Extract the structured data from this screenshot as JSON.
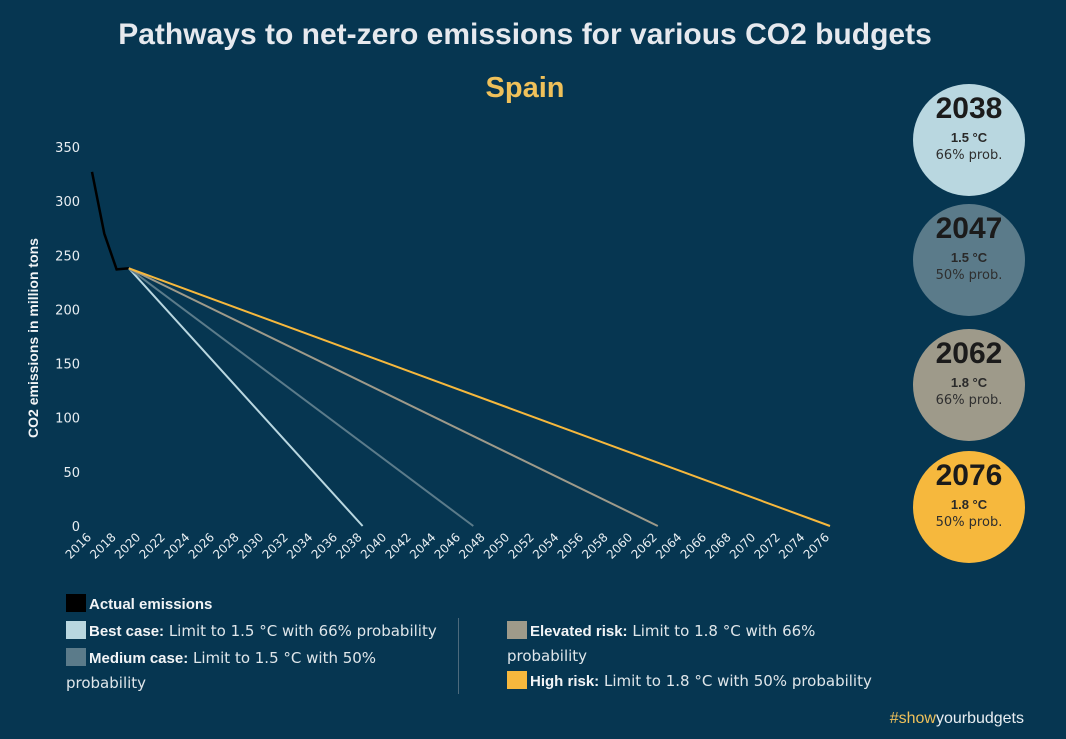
{
  "title": "Pathways to net-zero emissions for various CO2 budgets",
  "subtitle": "Spain",
  "chart_data": {
    "type": "line",
    "ylabel": "CO2 emissions in million tons",
    "ylim": [
      0,
      350
    ],
    "yticks": [
      0,
      50,
      100,
      150,
      200,
      250,
      300,
      350
    ],
    "xlim": [
      2016,
      2076
    ],
    "xticks": [
      2016,
      2018,
      2020,
      2022,
      2024,
      2026,
      2028,
      2030,
      2032,
      2034,
      2036,
      2038,
      2040,
      2042,
      2044,
      2046,
      2048,
      2050,
      2052,
      2054,
      2056,
      2058,
      2060,
      2062,
      2064,
      2066,
      2068,
      2070,
      2072,
      2074,
      2076
    ],
    "series": [
      {
        "name": "Actual emissions",
        "color": "#000000",
        "points": [
          [
            2016,
            327
          ],
          [
            2017,
            270
          ],
          [
            2018,
            237
          ],
          [
            2019,
            238
          ]
        ]
      },
      {
        "name": "Best case",
        "color": "#b9d7e0",
        "points": [
          [
            2019,
            238
          ],
          [
            2038,
            0
          ]
        ]
      },
      {
        "name": "Medium case",
        "color": "#5b7b8a",
        "points": [
          [
            2019,
            238
          ],
          [
            2047,
            0
          ]
        ]
      },
      {
        "name": "Elevated risk",
        "color": "#9e9a8a",
        "points": [
          [
            2019,
            238
          ],
          [
            2062,
            0
          ]
        ]
      },
      {
        "name": "High risk",
        "color": "#f6b83d",
        "points": [
          [
            2019,
            238
          ],
          [
            2076,
            0
          ]
        ]
      }
    ]
  },
  "circles": [
    {
      "year": "2038",
      "limit": "1.5 °C",
      "prob": "66% prob.",
      "color": "#b9d7e0"
    },
    {
      "year": "2047",
      "limit": "1.5 °C",
      "prob": "50% prob.",
      "color": "#5b7b8a"
    },
    {
      "year": "2062",
      "limit": "1.8 °C",
      "prob": "66% prob.",
      "color": "#9e9a8a"
    },
    {
      "year": "2076",
      "limit": "1.8 °C",
      "prob": "50% prob.",
      "color": "#f6b83d"
    }
  ],
  "legend": {
    "actual": {
      "label": "Actual emissions",
      "color": "#000000"
    },
    "best": {
      "label": "Best case:",
      "text": "Limit to 1.5 °C with 66% probability",
      "color": "#b9d7e0"
    },
    "medium": {
      "label": "Medium case:",
      "text": "Limit to 1.5 °C with 50%",
      "text2": "probability",
      "color": "#5b7b8a"
    },
    "elevated": {
      "label": "Elevated risk:",
      "text": "Limit to 1.8 °C with 66%",
      "text2": "probability",
      "color": "#9e9a8a"
    },
    "high": {
      "label": "High risk:",
      "text": "Limit to 1.8 °C with 50% probability",
      "color": "#f6b83d"
    }
  },
  "hashtag": {
    "prefix": "#show",
    "highlight": "your",
    "suffix": "budgets"
  }
}
